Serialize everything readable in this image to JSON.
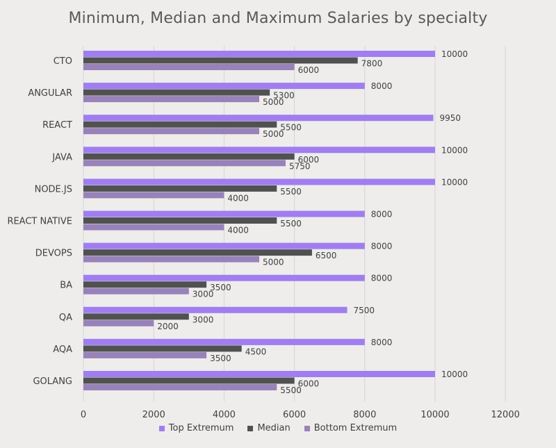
{
  "chart_data": {
    "type": "bar",
    "orientation": "horizontal",
    "title": "Minimum, Median and Maximum Salaries by specialty",
    "categories": [
      "CTO",
      "ANGULAR",
      "REACT",
      "JAVA",
      "NODE.JS",
      "REACT NATIVE",
      "DEVOPS",
      "BA",
      "QA",
      "AQA",
      "GOLANG"
    ],
    "series": [
      {
        "name": "Top Extremum",
        "color": "#a07ef0",
        "values": [
          10000,
          8000,
          9950,
          10000,
          10000,
          8000,
          8000,
          8000,
          7500,
          8000,
          10000
        ]
      },
      {
        "name": "Median",
        "color": "#515151",
        "values": [
          7800,
          5300,
          5500,
          6000,
          5500,
          5500,
          6500,
          3500,
          3000,
          4500,
          6000
        ]
      },
      {
        "name": "Bottom Extremum",
        "color": "#9783b8",
        "values": [
          6000,
          5000,
          5000,
          5750,
          4000,
          4000,
          5000,
          3000,
          2000,
          3500,
          5500
        ]
      }
    ],
    "xlim": [
      0,
      12000
    ],
    "xticks": [
      "0",
      "2000",
      "4000",
      "6000",
      "8000",
      "10000",
      "12000"
    ],
    "grid": true,
    "legend_position": "bottom"
  }
}
